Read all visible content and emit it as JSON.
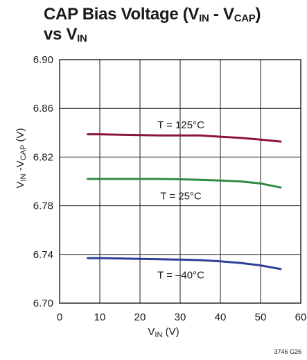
{
  "title": {
    "line1_prefix": "CAP Bias Voltage (V",
    "line1_sub1": "IN",
    "line1_mid": " - V",
    "line1_sub2": "CAP",
    "line1_suffix": ")",
    "line2_prefix": "vs V",
    "line2_sub": "IN"
  },
  "xlabel": {
    "prefix": "V",
    "sub": "IN",
    "suffix": " (V)"
  },
  "ylabel": {
    "prefix": "V",
    "sub1": "IN",
    "mid": " -V",
    "sub2": "CAP",
    "suffix": " (V)"
  },
  "figure_code": "3746 G26",
  "chart_data": {
    "type": "line",
    "xlim": [
      0,
      60
    ],
    "ylim": [
      6.7,
      6.9
    ],
    "grid": true,
    "x_ticks": [
      "0",
      "10",
      "20",
      "30",
      "40",
      "50",
      "60"
    ],
    "y_ticks": [
      "6.70",
      "6.74",
      "6.78",
      "6.82",
      "6.86",
      "6.90"
    ],
    "series": [
      {
        "name": "T = 125°C",
        "color": "#8b1538",
        "x": [
          7,
          10,
          15,
          20,
          25,
          30,
          35,
          40,
          45,
          50,
          55
        ],
        "y": [
          6.8387,
          6.8387,
          6.8383,
          6.838,
          6.8377,
          6.8377,
          6.8377,
          6.8367,
          6.8357,
          6.8343,
          6.8327
        ]
      },
      {
        "name": "T = 25°C",
        "color": "#2e8b46",
        "x": [
          7,
          10,
          15,
          20,
          25,
          30,
          35,
          40,
          45,
          50,
          55
        ],
        "y": [
          6.802,
          6.802,
          6.802,
          6.802,
          6.802,
          6.8017,
          6.8013,
          6.8007,
          6.8,
          6.7983,
          6.795
        ]
      },
      {
        "name": "T = –40°C",
        "color": "#2f3f96",
        "x": [
          7,
          10,
          15,
          20,
          25,
          30,
          35,
          40,
          45,
          50,
          55
        ],
        "y": [
          6.737,
          6.737,
          6.7367,
          6.7363,
          6.736,
          6.7357,
          6.7353,
          6.7343,
          6.733,
          6.731,
          6.728
        ]
      }
    ],
    "annotations": [
      {
        "text": "T = 125°C",
        "x": 30,
        "y": 6.8465
      },
      {
        "text": "T = 25°C",
        "x": 30,
        "y": 6.788
      },
      {
        "text": "T = –40°C",
        "x": 30,
        "y": 6.723
      }
    ]
  }
}
